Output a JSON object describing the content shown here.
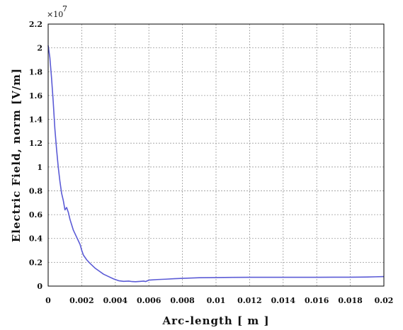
{
  "chart_data": {
    "type": "line",
    "title": "",
    "xlabel": "Arc-length [ m ]",
    "ylabel": "Electric Field, norm [V/m]",
    "y_exponent_label": "×10",
    "y_exponent_power": "7",
    "xlim": [
      0,
      0.02
    ],
    "ylim": [
      0,
      2.2
    ],
    "grid": true,
    "x_ticks": [
      {
        "value": 0,
        "label": "0"
      },
      {
        "value": 0.002,
        "label": "0.002"
      },
      {
        "value": 0.004,
        "label": "0.004"
      },
      {
        "value": 0.006,
        "label": "0.006"
      },
      {
        "value": 0.008,
        "label": "0.008"
      },
      {
        "value": 0.01,
        "label": "0.01"
      },
      {
        "value": 0.012,
        "label": "0.012"
      },
      {
        "value": 0.014,
        "label": "0.014"
      },
      {
        "value": 0.016,
        "label": "0.016"
      },
      {
        "value": 0.018,
        "label": "0.018"
      },
      {
        "value": 0.02,
        "label": "0.02"
      }
    ],
    "y_ticks": [
      {
        "value": 0,
        "label": "0"
      },
      {
        "value": 0.2,
        "label": "0.2"
      },
      {
        "value": 0.4,
        "label": "0.4"
      },
      {
        "value": 0.6,
        "label": "0.6"
      },
      {
        "value": 0.8,
        "label": "0.8"
      },
      {
        "value": 1.0,
        "label": "1"
      },
      {
        "value": 1.2,
        "label": "1.2"
      },
      {
        "value": 1.4,
        "label": "1.4"
      },
      {
        "value": 1.6,
        "label": "1.6"
      },
      {
        "value": 1.8,
        "label": "1.8"
      },
      {
        "value": 2.0,
        "label": "2"
      },
      {
        "value": 2.2,
        "label": "2.2"
      }
    ],
    "series": [
      {
        "color": "#5b5bd6",
        "x": [
          0,
          0.0001,
          0.0002,
          0.0003,
          0.0004,
          0.0005,
          0.0006,
          0.0007,
          0.0008,
          0.0009,
          0.001,
          0.0011,
          0.0012,
          0.0013,
          0.0015,
          0.0017,
          0.0019,
          0.002,
          0.0021,
          0.0023,
          0.0025,
          0.0028,
          0.003,
          0.0033,
          0.0036,
          0.0039,
          0.0042,
          0.0045,
          0.0048,
          0.005,
          0.0052,
          0.0055,
          0.0057,
          0.0058,
          0.006,
          0.0065,
          0.007,
          0.0075,
          0.008,
          0.009,
          0.01,
          0.011,
          0.012,
          0.013,
          0.014,
          0.015,
          0.016,
          0.017,
          0.018,
          0.019,
          0.0195,
          0.02
        ],
        "y": [
          2.02,
          1.92,
          1.75,
          1.55,
          1.32,
          1.15,
          1.0,
          0.88,
          0.78,
          0.72,
          0.64,
          0.66,
          0.62,
          0.56,
          0.47,
          0.41,
          0.35,
          0.3,
          0.26,
          0.22,
          0.19,
          0.15,
          0.13,
          0.1,
          0.08,
          0.06,
          0.045,
          0.04,
          0.042,
          0.038,
          0.037,
          0.04,
          0.042,
          0.038,
          0.05,
          0.055,
          0.058,
          0.062,
          0.065,
          0.07,
          0.072,
          0.073,
          0.074,
          0.074,
          0.074,
          0.074,
          0.074,
          0.075,
          0.075,
          0.076,
          0.078,
          0.08
        ]
      }
    ]
  }
}
